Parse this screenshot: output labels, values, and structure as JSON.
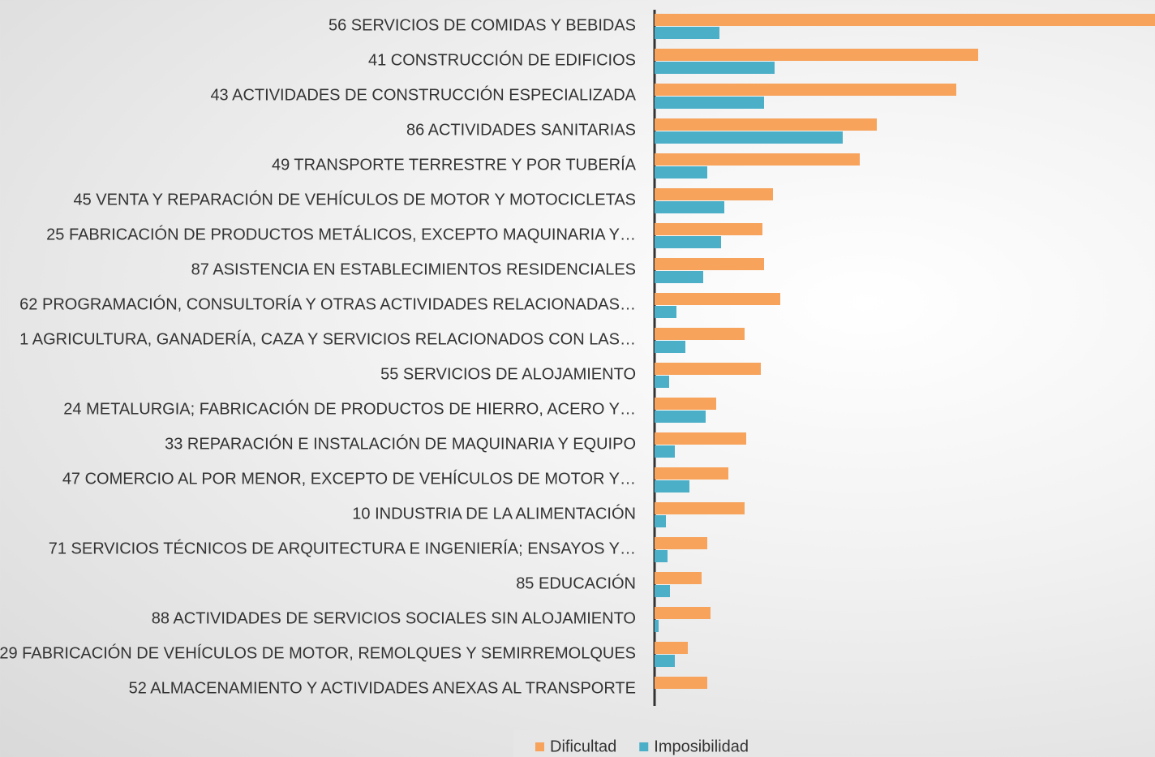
{
  "chart_data": {
    "type": "hbar",
    "categories": [
      "56 SERVICIOS DE COMIDAS Y BEBIDAS",
      "41 CONSTRUCCIÓN DE EDIFICIOS",
      "43 ACTIVIDADES DE CONSTRUCCIÓN ESPECIALIZADA",
      "86 ACTIVIDADES SANITARIAS",
      "49 TRANSPORTE TERRESTRE Y POR TUBERÍA",
      "45 VENTA Y REPARACIÓN DE VEHÍCULOS DE MOTOR Y MOTOCICLETAS",
      "25 FABRICACIÓN DE PRODUCTOS METÁLICOS, EXCEPTO MAQUINARIA Y…",
      "87 ASISTENCIA EN ESTABLECIMIENTOS RESIDENCIALES",
      "62 PROGRAMACIÓN, CONSULTORÍA Y OTRAS ACTIVIDADES RELACIONADAS…",
      "1 AGRICULTURA, GANADERÍA, CAZA Y SERVICIOS RELACIONADOS CON LAS…",
      "55 SERVICIOS DE ALOJAMIENTO",
      "24 METALURGIA; FABRICACIÓN DE PRODUCTOS DE HIERRO, ACERO Y…",
      "33 REPARACIÓN E INSTALACIÓN DE MAQUINARIA Y EQUIPO",
      "47 COMERCIO AL POR MENOR, EXCEPTO DE VEHÍCULOS DE MOTOR Y…",
      "10 INDUSTRIA DE LA ALIMENTACIÓN",
      "71 SERVICIOS TÉCNICOS DE ARQUITECTURA E INGENIERÍA; ENSAYOS Y…",
      "85 EDUCACIÓN",
      "88 ACTIVIDADES DE SERVICIOS SOCIALES SIN ALOJAMIENTO",
      "29 FABRICACIÓN DE VEHÍCULOS DE MOTOR, REMOLQUES Y SEMIRREMOLQUES",
      "52 ALMACENAMIENTO Y ACTIVIDADES ANEXAS AL TRANSPORTE"
    ],
    "series": [
      {
        "name": "Dificultad",
        "color": "#f7a35c",
        "values": [
          617,
          399,
          372,
          274,
          253,
          146,
          133,
          135,
          155,
          111,
          131,
          76,
          113,
          91,
          111,
          65,
          58,
          69,
          41,
          65
        ]
      },
      {
        "name": "Imposibilidad",
        "color": "#4bafc8",
        "values": [
          80,
          148,
          135,
          232,
          65,
          86,
          82,
          60,
          27,
          38,
          18,
          63,
          25,
          43,
          14,
          16,
          19,
          5,
          25,
          0
        ]
      }
    ],
    "xlim": [
      0,
      617
    ]
  }
}
